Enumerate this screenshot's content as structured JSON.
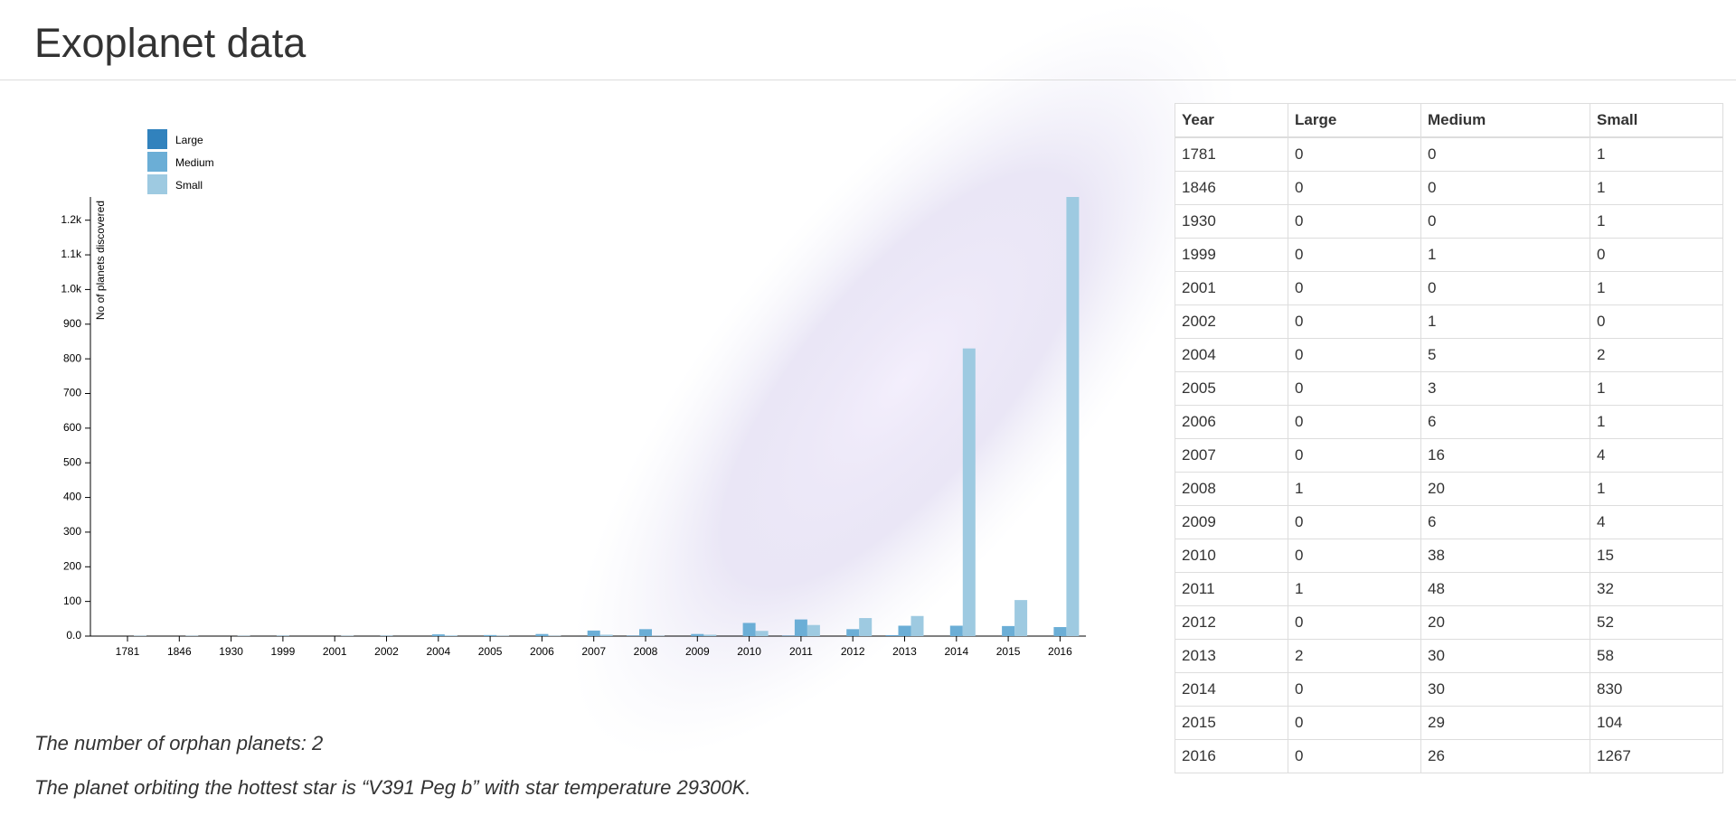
{
  "header": {
    "title": "Exoplanet data"
  },
  "chart_data": {
    "type": "bar",
    "y_label": "No of planets discovered",
    "categories": [
      "1781",
      "1846",
      "1930",
      "1999",
      "2001",
      "2002",
      "2004",
      "2005",
      "2006",
      "2007",
      "2008",
      "2009",
      "2010",
      "2011",
      "2012",
      "2013",
      "2014",
      "2015",
      "2016"
    ],
    "series": [
      {
        "name": "Large",
        "color": "#3182bd",
        "values": [
          0,
          0,
          0,
          0,
          0,
          0,
          0,
          0,
          0,
          0,
          1,
          0,
          0,
          1,
          0,
          2,
          0,
          0,
          0
        ]
      },
      {
        "name": "Medium",
        "color": "#6baed6",
        "values": [
          0,
          0,
          0,
          1,
          0,
          1,
          5,
          3,
          6,
          16,
          20,
          6,
          38,
          48,
          20,
          30,
          30,
          29,
          26
        ]
      },
      {
        "name": "Small",
        "color": "#9ecae1",
        "values": [
          1,
          1,
          1,
          0,
          1,
          0,
          2,
          1,
          1,
          4,
          1,
          4,
          15,
          32,
          52,
          58,
          830,
          104,
          1267
        ]
      }
    ],
    "ylim": [
      0,
      1267
    ],
    "yticks": [
      {
        "value": 0,
        "label": "0.0"
      },
      100,
      200,
      300,
      400,
      500,
      600,
      700,
      800,
      900,
      {
        "value": 1000,
        "label": "1.0k"
      },
      {
        "value": 1100,
        "label": "1.1k"
      },
      {
        "value": 1200,
        "label": "1.2k"
      }
    ],
    "legend": "top-left"
  },
  "table": {
    "year_header": "Year"
  },
  "notes": [
    "The number of orphan planets: 2",
    "The planet orbiting the hottest star is “V391 Peg b” with star temperature 29300K."
  ]
}
